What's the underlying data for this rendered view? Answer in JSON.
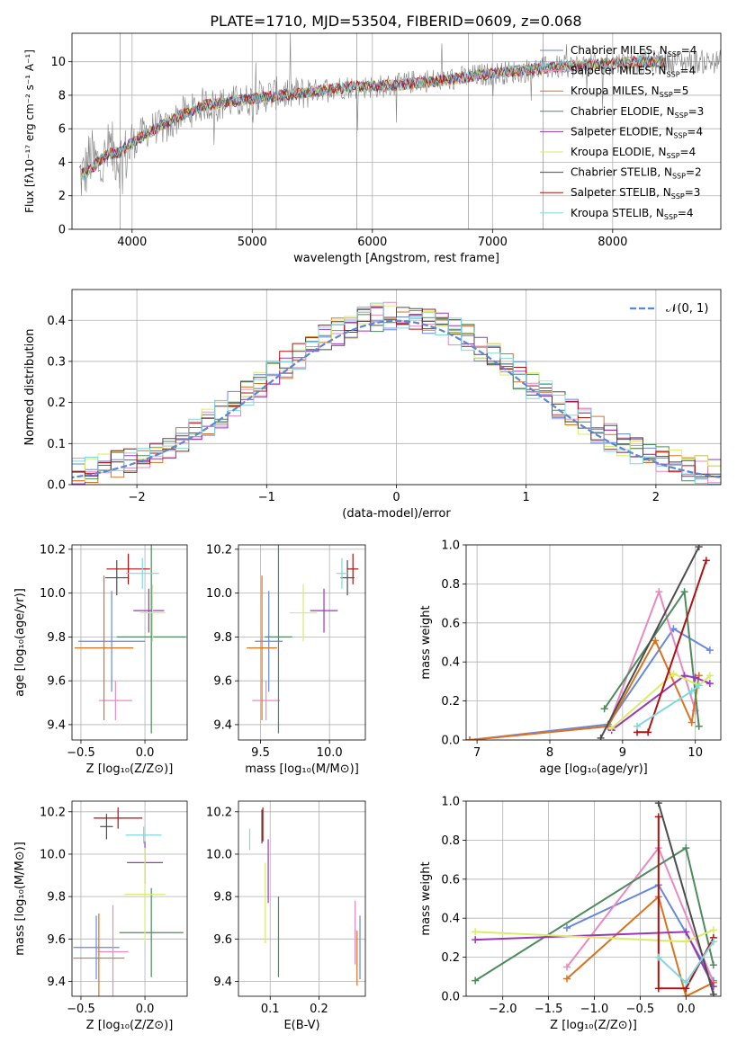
{
  "figure_title": "PLATE=1710, MJD=53504, FIBERID=0609, z=0.068",
  "colors": {
    "chabrier_miles": "#6688dd",
    "salpeter_miles": "#e88ac2",
    "kroupa_miles": "#d9731f",
    "chabrier_elodie": "#4d8a5e",
    "salpeter_elodie": "#9b36b8",
    "kroupa_elodie": "#d8ec6a",
    "chabrier_stelib": "#4d4d4d",
    "salpeter_stelib": "#b01010",
    "kroupa_stelib": "#7fd8e0",
    "data": "#808080",
    "gauss": "#5b86d6",
    "grid": "#b0b0b0"
  },
  "legend_models": [
    {
      "key": "chabrier_miles",
      "pre": "Chabrier MILES, N",
      "sub": "SSP",
      "post": "=4"
    },
    {
      "key": "salpeter_miles",
      "pre": "Salpeter MILES, N",
      "sub": "SSP",
      "post": "=4"
    },
    {
      "key": "kroupa_miles",
      "pre": "Kroupa MILES, N",
      "sub": "SSP",
      "post": "=5"
    },
    {
      "key": "chabrier_elodie",
      "pre": "Chabrier ELODIE, N",
      "sub": "SSP",
      "post": "=3"
    },
    {
      "key": "salpeter_elodie",
      "pre": "Salpeter ELODIE, N",
      "sub": "SSP",
      "post": "=4"
    },
    {
      "key": "kroupa_elodie",
      "pre": "Kroupa ELODIE, N",
      "sub": "SSP",
      "post": "=4"
    },
    {
      "key": "chabrier_stelib",
      "pre": "Chabrier STELIB, N",
      "sub": "SSP",
      "post": "=2"
    },
    {
      "key": "salpeter_stelib",
      "pre": "Salpeter STELIB, N",
      "sub": "SSP",
      "post": "=3"
    },
    {
      "key": "kroupa_stelib",
      "pre": "Kroupa STELIB, N",
      "sub": "SSP",
      "post": "=4"
    }
  ],
  "chart_data": [
    {
      "id": "spectrum",
      "type": "line",
      "xlabel": "wavelength [Angstrom, rest frame]",
      "ylabel": "Flux [fλ10⁻¹⁷ erg cm⁻² s⁻¹ A⁻¹]",
      "xlim": [
        3500,
        8900
      ],
      "ylim": [
        0,
        11.7
      ],
      "xticks": [
        4000,
        5000,
        6000,
        7000,
        8000
      ],
      "yticks": [
        0,
        2,
        4,
        6,
        8,
        10
      ],
      "legend_position": "right",
      "data_series": {
        "name": "data",
        "x": [
          3600,
          3650,
          3700,
          3750,
          3800,
          3850,
          3900,
          3950,
          4000,
          4100,
          4200,
          4300,
          4400,
          4500,
          4600,
          4700,
          4800,
          4900,
          5000,
          5200,
          5400,
          5600,
          5800,
          6000,
          6200,
          6400,
          6600,
          6800,
          7000,
          7200,
          7400,
          7600,
          7800,
          8000,
          8200,
          8400
        ],
        "y": [
          3.2,
          4.3,
          4.0,
          3.7,
          4.6,
          4.6,
          4.2,
          4.4,
          5.1,
          5.8,
          6.1,
          6.0,
          6.9,
          7.1,
          7.5,
          7.4,
          7.6,
          7.6,
          7.8,
          8.1,
          8.1,
          8.4,
          8.5,
          8.5,
          8.6,
          8.9,
          8.9,
          9.1,
          9.3,
          9.4,
          9.6,
          9.7,
          9.8,
          9.9,
          10.0,
          10.0
        ]
      },
      "model_series": {
        "name": "models",
        "x": [
          3600,
          3700,
          3800,
          3900,
          4000,
          4200,
          4400,
          4600,
          4800,
          5000,
          5400,
          5800,
          6200,
          6600,
          7000,
          7400,
          7800,
          8200,
          8400
        ],
        "y": [
          3.3,
          3.9,
          4.5,
          4.6,
          5.2,
          6.0,
          6.8,
          7.4,
          7.6,
          7.8,
          8.1,
          8.5,
          8.6,
          8.9,
          9.3,
          9.6,
          9.8,
          10.0,
          10.0
        ]
      }
    },
    {
      "id": "residuals",
      "type": "histogram",
      "xlabel": "(data-model)/error",
      "ylabel": "Normed distribution",
      "xlim": [
        -2.5,
        2.5
      ],
      "ylim": [
        0,
        0.475
      ],
      "xticks": [
        -2,
        -1,
        0,
        1,
        2
      ],
      "yticks": [
        0.0,
        0.1,
        0.2,
        0.3,
        0.4
      ],
      "bin_width": 0.1,
      "reference_curve": {
        "name": "𝒩(0, 1)",
        "mean": 0,
        "sigma": 1
      },
      "legend_position": "top-right"
    },
    {
      "id": "age_vs_z",
      "type": "scatter",
      "xlabel": "Z [log₁₀(Z/Z⊙)]",
      "ylabel": "age  [log₁₀(age/yr)]",
      "xlim": [
        -0.57,
        0.33
      ],
      "ylim": [
        9.33,
        10.22
      ],
      "xticks": [
        -0.5,
        0.0
      ],
      "yticks": [
        9.4,
        9.6,
        9.8,
        10.0,
        10.2
      ],
      "points": [
        {
          "series": "chabrier_miles",
          "x": -0.26,
          "y": 9.78,
          "xerr": 0.26,
          "yerr": 0.23
        },
        {
          "series": "salpeter_miles",
          "x": -0.23,
          "y": 9.51,
          "xerr": 0.13,
          "yerr": 0.09
        },
        {
          "series": "kroupa_miles",
          "x": -0.32,
          "y": 9.75,
          "xerr": 0.23,
          "yerr": 0.33
        },
        {
          "series": "chabrier_elodie",
          "x": 0.05,
          "y": 9.8,
          "xerr": 0.27,
          "yerr": 0.44
        },
        {
          "series": "salpeter_elodie",
          "x": 0.03,
          "y": 9.92,
          "xerr": 0.12,
          "yerr": 0.1
        },
        {
          "series": "kroupa_elodie",
          "x": 0.06,
          "y": 9.91,
          "xerr": 0.1,
          "yerr": 0.13
        },
        {
          "series": "chabrier_stelib",
          "x": -0.22,
          "y": 10.07,
          "xerr": 0.09,
          "yerr": 0.08
        },
        {
          "series": "salpeter_stelib",
          "x": -0.13,
          "y": 10.11,
          "xerr": 0.17,
          "yerr": 0.07
        },
        {
          "series": "kroupa_stelib",
          "x": -0.02,
          "y": 10.09,
          "xerr": 0.13,
          "yerr": 0.07
        }
      ]
    },
    {
      "id": "age_vs_mass",
      "type": "scatter",
      "xlabel": "mass [log₁₀(M/M⊙)]",
      "ylabel": "",
      "xlim": [
        9.34,
        10.26
      ],
      "ylim": [
        9.33,
        10.22
      ],
      "xticks": [
        9.5,
        10.0
      ],
      "yticks": [
        9.4,
        9.6,
        9.8,
        10.0,
        10.2
      ],
      "points": [
        {
          "series": "chabrier_miles",
          "x": 9.56,
          "y": 9.78,
          "xerr": 0.1,
          "yerr": 0.23
        },
        {
          "series": "salpeter_miles",
          "x": 9.54,
          "y": 9.51,
          "xerr": 0.1,
          "yerr": 0.09
        },
        {
          "series": "kroupa_miles",
          "x": 9.51,
          "y": 9.75,
          "xerr": 0.11,
          "yerr": 0.33
        },
        {
          "series": "chabrier_elodie",
          "x": 9.63,
          "y": 9.8,
          "xerr": 0.1,
          "yerr": 0.44
        },
        {
          "series": "salpeter_elodie",
          "x": 9.96,
          "y": 9.92,
          "xerr": 0.1,
          "yerr": 0.1
        },
        {
          "series": "kroupa_elodie",
          "x": 9.81,
          "y": 9.91,
          "xerr": 0.1,
          "yerr": 0.13
        },
        {
          "series": "chabrier_stelib",
          "x": 10.13,
          "y": 10.07,
          "xerr": 0.05,
          "yerr": 0.08
        },
        {
          "series": "salpeter_stelib",
          "x": 10.17,
          "y": 10.11,
          "xerr": 0.04,
          "yerr": 0.07
        },
        {
          "series": "kroupa_stelib",
          "x": 10.09,
          "y": 10.09,
          "xerr": 0.04,
          "yerr": 0.07
        }
      ]
    },
    {
      "id": "weight_vs_age",
      "type": "line",
      "xlabel": "age  [log₁₀(age/yr)]",
      "ylabel": "mass weight",
      "xlim": [
        6.85,
        10.35
      ],
      "ylim": [
        0,
        1.0
      ],
      "xticks": [
        7,
        8,
        9,
        10
      ],
      "yticks": [
        0.0,
        0.2,
        0.4,
        0.6,
        0.8,
        1.0
      ],
      "series": [
        {
          "key": "chabrier_miles",
          "x": [
            6.9,
            8.8,
            9.7,
            10.2
          ],
          "y": [
            0.0,
            0.08,
            0.57,
            0.46
          ]
        },
        {
          "key": "salpeter_miles",
          "x": [
            6.9,
            8.8,
            9.5,
            10.0
          ],
          "y": [
            0.0,
            0.07,
            0.76,
            0.15
          ]
        },
        {
          "key": "kroupa_miles",
          "x": [
            6.9,
            8.8,
            9.45,
            9.95,
            10.05
          ],
          "y": [
            0.0,
            0.07,
            0.51,
            0.09,
            0.33
          ]
        },
        {
          "key": "chabrier_elodie",
          "x": [
            8.75,
            9.85,
            10.05
          ],
          "y": [
            0.16,
            0.76,
            0.07
          ]
        },
        {
          "key": "salpeter_elodie",
          "x": [
            8.85,
            9.85,
            10.0,
            10.2
          ],
          "y": [
            0.05,
            0.33,
            0.32,
            0.29
          ]
        },
        {
          "key": "kroupa_elodie",
          "x": [
            8.85,
            9.7,
            10.05,
            10.2
          ],
          "y": [
            0.06,
            0.34,
            0.28,
            0.33
          ]
        },
        {
          "key": "chabrier_stelib",
          "x": [
            8.7,
            10.05
          ],
          "y": [
            0.01,
            0.99
          ]
        },
        {
          "key": "salpeter_stelib",
          "x": [
            9.2,
            9.35,
            10.15
          ],
          "y": [
            0.04,
            0.04,
            0.92
          ]
        },
        {
          "key": "kroupa_stelib",
          "x": [
            9.2,
            9.95,
            10.05
          ],
          "y": [
            0.07,
            0.25,
            0.28
          ]
        }
      ]
    },
    {
      "id": "mass_vs_z",
      "type": "scatter",
      "xlabel": "Z [log₁₀(Z/Z⊙)]",
      "ylabel": "mass [log₁₀(M/M⊙)]",
      "xlim": [
        -0.57,
        0.33
      ],
      "ylim": [
        9.33,
        10.25
      ],
      "xticks": [
        -0.5,
        0.0
      ],
      "yticks": [
        9.4,
        9.6,
        9.8,
        10.0,
        10.2
      ],
      "points": [
        {
          "series": "chabrier_miles",
          "x": -0.38,
          "y": 9.56,
          "xerr": 0.18,
          "yerr": 0.15
        },
        {
          "series": "salpeter_miles",
          "x": -0.25,
          "y": 9.54,
          "xerr": 0.12,
          "yerr": 0.22
        },
        {
          "series": "kroupa_miles",
          "x": -0.36,
          "y": 9.51,
          "xerr": 0.2,
          "yerr": 0.21
        },
        {
          "series": "chabrier_elodie",
          "x": 0.05,
          "y": 9.63,
          "xerr": 0.25,
          "yerr": 0.21
        },
        {
          "series": "salpeter_elodie",
          "x": 0.0,
          "y": 9.96,
          "xerr": 0.14,
          "yerr": 0.1
        },
        {
          "series": "kroupa_elodie",
          "x": 0.0,
          "y": 9.81,
          "xerr": 0.16,
          "yerr": 0.22
        },
        {
          "series": "chabrier_stelib",
          "x": -0.3,
          "y": 10.13,
          "xerr": 0.05,
          "yerr": 0.06
        },
        {
          "series": "salpeter_stelib",
          "x": -0.21,
          "y": 10.17,
          "xerr": 0.19,
          "yerr": 0.05
        },
        {
          "series": "kroupa_stelib",
          "x": -0.01,
          "y": 10.09,
          "xerr": 0.14,
          "yerr": 0.04
        }
      ]
    },
    {
      "id": "mass_vs_ebv",
      "type": "scatter",
      "xlabel": "E(B-V)",
      "ylabel": "",
      "xlim": [
        0.035,
        0.295
      ],
      "ylim": [
        9.33,
        10.25
      ],
      "xticks": [
        0.1,
        0.2
      ],
      "yticks": [
        9.4,
        9.6,
        9.8,
        10.0,
        10.2
      ],
      "points": [
        {
          "series": "chabrier_miles",
          "x": 0.284,
          "y": 9.56,
          "xerr": 0.0,
          "yerr": 0.15
        },
        {
          "series": "salpeter_miles",
          "x": 0.274,
          "y": 9.63,
          "xerr": 0.0,
          "yerr": 0.15
        },
        {
          "series": "kroupa_miles",
          "x": 0.278,
          "y": 9.51,
          "xerr": 0.0,
          "yerr": 0.13
        },
        {
          "series": "chabrier_elodie",
          "x": 0.117,
          "y": 9.61,
          "xerr": 0.0,
          "yerr": 0.19
        },
        {
          "series": "salpeter_elodie",
          "x": 0.096,
          "y": 9.92,
          "xerr": 0.0,
          "yerr": 0.15
        },
        {
          "series": "kroupa_elodie",
          "x": 0.09,
          "y": 9.77,
          "xerr": 0.0,
          "yerr": 0.19
        },
        {
          "series": "chabrier_stelib",
          "x": 0.083,
          "y": 10.13,
          "xerr": 0.0,
          "yerr": 0.08
        },
        {
          "series": "salpeter_stelib",
          "x": 0.085,
          "y": 10.14,
          "xerr": 0.0,
          "yerr": 0.08
        },
        {
          "series": "kroupa_stelib",
          "x": 0.058,
          "y": 10.07,
          "xerr": 0.0,
          "yerr": 0.05
        }
      ]
    },
    {
      "id": "weight_vs_z",
      "type": "line",
      "xlabel": "Z [log₁₀(Z/Z⊙)]",
      "ylabel": "mass weight",
      "xlim": [
        -2.4,
        0.38
      ],
      "ylim": [
        0,
        1.0
      ],
      "xticks": [
        -2.0,
        -1.5,
        -1.0,
        -0.5,
        0.0
      ],
      "yticks": [
        0.0,
        0.2,
        0.4,
        0.6,
        0.8,
        1.0
      ],
      "series": [
        {
          "key": "chabrier_miles",
          "x": [
            -1.3,
            -0.3,
            0.3
          ],
          "y": [
            0.35,
            0.57,
            0.08
          ]
        },
        {
          "key": "salpeter_miles",
          "x": [
            -1.3,
            -0.3,
            0.3
          ],
          "y": [
            0.15,
            0.76,
            0.07
          ]
        },
        {
          "key": "kroupa_miles",
          "x": [
            -1.3,
            -0.3,
            0.0,
            0.3
          ],
          "y": [
            0.09,
            0.51,
            0.0,
            0.07
          ]
        },
        {
          "key": "chabrier_elodie",
          "x": [
            -2.3,
            0.0,
            0.3
          ],
          "y": [
            0.08,
            0.76,
            0.16
          ]
        },
        {
          "key": "salpeter_elodie",
          "x": [
            -2.3,
            0.0,
            0.3
          ],
          "y": [
            0.29,
            0.33,
            0.05
          ]
        },
        {
          "key": "kroupa_elodie",
          "x": [
            -2.3,
            0.0,
            0.3
          ],
          "y": [
            0.33,
            0.28,
            0.34
          ]
        },
        {
          "key": "chabrier_stelib",
          "x": [
            -0.3,
            0.3
          ],
          "y": [
            0.99,
            0.01
          ]
        },
        {
          "key": "salpeter_stelib",
          "x": [
            -0.3,
            -0.3,
            0.0,
            0.3
          ],
          "y": [
            0.92,
            0.04,
            0.04,
            0.3
          ]
        },
        {
          "key": "kroupa_stelib",
          "x": [
            -0.3,
            0.0,
            0.3
          ],
          "y": [
            0.2,
            0.07,
            0.28
          ]
        }
      ]
    }
  ]
}
